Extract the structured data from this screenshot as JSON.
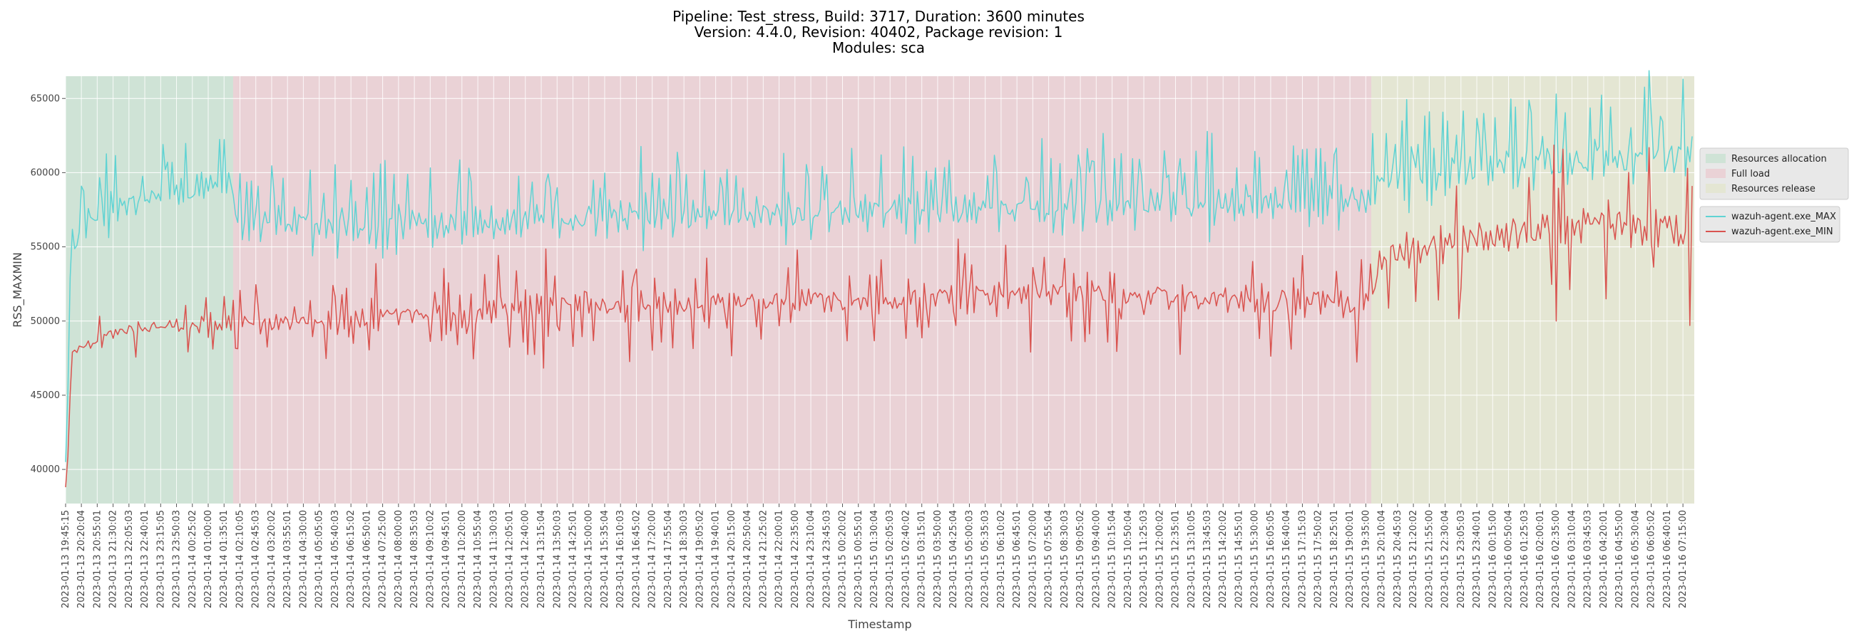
{
  "chart_data": {
    "type": "line",
    "title_lines": [
      "Pipeline: Test_stress, Build: 3717, Duration: 3600 minutes",
      "Version: 4.4.0, Revision: 40402, Package revision: 1",
      "Modules: sca"
    ],
    "xlabel": "Timestamp",
    "ylabel": "RSS_MAXMIN",
    "ylim": [
      37700,
      66500
    ],
    "y_ticks": [
      40000,
      45000,
      50000,
      55000,
      60000,
      65000
    ],
    "x_range": [
      "2023-01-13 19:45:15",
      "2023-01-16 07:40:00"
    ],
    "grid": true,
    "x_tick_labels": [
      "2023-01-13 19:45:15",
      "2023-01-13 20:20:04",
      "2023-01-13 20:55:01",
      "2023-01-13 21:30:02",
      "2023-01-13 22:05:03",
      "2023-01-13 22:40:01",
      "2023-01-13 23:15:05",
      "2023-01-13 23:50:03",
      "2023-01-14 00:25:02",
      "2023-01-14 01:00:00",
      "2023-01-14 01:35:01",
      "2023-01-14 02:10:05",
      "2023-01-14 02:45:03",
      "2023-01-14 03:20:02",
      "2023-01-14 03:55:01",
      "2023-01-14 04:30:00",
      "2023-01-14 05:05:05",
      "2023-01-14 05:40:03",
      "2023-01-14 06:15:02",
      "2023-01-14 06:50:01",
      "2023-01-14 07:25:00",
      "2023-01-14 08:00:00",
      "2023-01-14 08:35:03",
      "2023-01-14 09:10:02",
      "2023-01-14 09:45:01",
      "2023-01-14 10:20:00",
      "2023-01-14 10:55:04",
      "2023-01-14 11:30:03",
      "2023-01-14 12:05:01",
      "2023-01-14 12:40:00",
      "2023-01-14 13:15:04",
      "2023-01-14 13:50:03",
      "2023-01-14 14:25:01",
      "2023-01-14 15:00:00",
      "2023-01-14 15:35:04",
      "2023-01-14 16:10:03",
      "2023-01-14 16:45:02",
      "2023-01-14 17:20:00",
      "2023-01-14 17:55:04",
      "2023-01-14 18:30:03",
      "2023-01-14 19:05:02",
      "2023-01-14 19:40:01",
      "2023-01-14 20:15:00",
      "2023-01-14 20:50:04",
      "2023-01-14 21:25:02",
      "2023-01-14 22:00:01",
      "2023-01-14 22:35:00",
      "2023-01-14 23:10:04",
      "2023-01-14 23:45:03",
      "2023-01-15 00:20:02",
      "2023-01-15 00:55:01",
      "2023-01-15 01:30:04",
      "2023-01-15 02:05:03",
      "2023-01-15 02:40:02",
      "2023-01-15 03:15:01",
      "2023-01-15 03:50:00",
      "2023-01-15 04:25:04",
      "2023-01-15 05:00:03",
      "2023-01-15 05:35:03",
      "2023-01-15 06:10:02",
      "2023-01-15 06:45:01",
      "2023-01-15 07:20:00",
      "2023-01-15 07:55:04",
      "2023-01-15 08:30:03",
      "2023-01-15 09:05:02",
      "2023-01-15 09:40:00",
      "2023-01-15 10:15:04",
      "2023-01-15 10:50:04",
      "2023-01-15 11:25:03",
      "2023-01-15 12:00:02",
      "2023-01-15 12:35:01",
      "2023-01-15 13:10:05",
      "2023-01-15 13:45:03",
      "2023-01-15 14:20:02",
      "2023-01-15 14:55:01",
      "2023-01-15 15:30:00",
      "2023-01-15 16:05:05",
      "2023-01-15 16:40:04",
      "2023-01-15 17:15:03",
      "2023-01-15 17:50:02",
      "2023-01-15 18:25:01",
      "2023-01-15 19:00:01",
      "2023-01-15 19:35:00",
      "2023-01-15 20:10:04",
      "2023-01-15 20:45:03",
      "2023-01-15 21:20:02",
      "2023-01-15 21:55:00",
      "2023-01-15 22:30:04",
      "2023-01-15 23:05:03",
      "2023-01-15 23:40:01",
      "2023-01-16 00:15:00",
      "2023-01-16 00:50:04",
      "2023-01-16 01:25:03",
      "2023-01-16 02:00:01",
      "2023-01-16 02:35:00",
      "2023-01-16 03:10:04",
      "2023-01-16 03:45:03",
      "2023-01-16 04:20:01",
      "2023-01-16 04:55:00",
      "2023-01-16 05:30:04",
      "2023-01-16 06:05:02",
      "2023-01-16 06:40:01",
      "2023-01-16 07:15:00"
    ],
    "phases": [
      {
        "name": "Resources allocation",
        "start": "2023-01-13 19:45:15",
        "end": "2023-01-14 01:55:00",
        "color": "#cfe3d6"
      },
      {
        "name": "Full load",
        "start": "2023-01-14 01:55:00",
        "end": "2023-01-15 19:47:00",
        "color": "#ead2d6"
      },
      {
        "name": "Resources release",
        "start": "2023-01-15 19:47:00",
        "end": "2023-01-16 07:40:00",
        "color": "#e4e6d3"
      }
    ],
    "series": [
      {
        "name": "wazuh-agent.exe_MAX",
        "color": "#5fd3d3",
        "anchors": [
          [
            "2023-01-13 19:45:15",
            40500
          ],
          [
            "2023-01-13 19:48:00",
            44500
          ],
          [
            "2023-01-13 19:52:00",
            45800
          ],
          [
            "2023-01-13 19:56:00",
            54600
          ],
          [
            "2023-01-13 20:25:00",
            56400
          ],
          [
            "2023-01-13 21:30:00",
            57500
          ],
          [
            "2023-01-13 22:30:00",
            58000
          ],
          [
            "2023-01-13 23:30:00",
            58500
          ],
          [
            "2023-01-14 00:30:00",
            59000
          ],
          [
            "2023-01-14 01:50:00",
            59500
          ],
          [
            "2023-01-14 02:05:00",
            57000
          ],
          [
            "2023-01-14 03:00:00",
            56800
          ],
          [
            "2023-01-14 06:00:00",
            56300
          ],
          [
            "2023-01-14 10:00:00",
            56700
          ],
          [
            "2023-01-14 16:00:00",
            57000
          ],
          [
            "2023-01-14 22:00:00",
            57200
          ],
          [
            "2023-01-15 04:00:00",
            57500
          ],
          [
            "2023-01-15 10:00:00",
            57800
          ],
          [
            "2023-01-15 16:00:00",
            58000
          ],
          [
            "2023-01-15 19:45:00",
            58300
          ],
          [
            "2023-01-15 20:10:00",
            59600
          ],
          [
            "2023-01-15 23:00:00",
            60300
          ],
          [
            "2023-01-16 02:00:00",
            60600
          ],
          [
            "2023-01-16 05:00:00",
            61000
          ],
          [
            "2023-01-16 07:40:00",
            61200
          ]
        ],
        "amplitude_anchors": [
          [
            "2023-01-13 19:45:15",
            1000
          ],
          [
            "2023-01-13 20:30:00",
            1700
          ],
          [
            "2023-01-14 01:50:00",
            1900
          ],
          [
            "2023-01-14 02:05:00",
            2000
          ],
          [
            "2023-01-15 19:45:00",
            2200
          ],
          [
            "2023-01-15 20:10:00",
            2300
          ],
          [
            "2023-01-16 07:40:00",
            2500
          ]
        ]
      },
      {
        "name": "wazuh-agent.exe_MIN",
        "color": "#d9534f",
        "anchors": [
          [
            "2023-01-13 19:45:15",
            38800
          ],
          [
            "2023-01-13 19:49:00",
            40600
          ],
          [
            "2023-01-13 19:53:00",
            41500
          ],
          [
            "2023-01-13 19:57:00",
            47900
          ],
          [
            "2023-01-13 20:30:00",
            48400
          ],
          [
            "2023-01-13 21:30:00",
            49200
          ],
          [
            "2023-01-13 23:00:00",
            49600
          ],
          [
            "2023-01-14 01:50:00",
            49900
          ],
          [
            "2023-01-14 04:00:00",
            49900
          ],
          [
            "2023-01-14 08:00:00",
            50300
          ],
          [
            "2023-01-14 14:00:00",
            51000
          ],
          [
            "2023-01-14 20:00:00",
            51200
          ],
          [
            "2023-01-15 02:00:00",
            51500
          ],
          [
            "2023-01-15 08:00:00",
            51800
          ],
          [
            "2023-01-15 14:00:00",
            51600
          ],
          [
            "2023-01-15 19:45:00",
            51200
          ],
          [
            "2023-01-15 20:05:00",
            54500
          ],
          [
            "2023-01-15 23:00:00",
            55400
          ],
          [
            "2023-01-16 02:00:00",
            56200
          ],
          [
            "2023-01-16 05:00:00",
            56500
          ],
          [
            "2023-01-16 07:40:00",
            56000
          ]
        ],
        "amplitude_anchors": [
          [
            "2023-01-13 19:45:15",
            300
          ],
          [
            "2023-01-13 20:30:00",
            700
          ],
          [
            "2023-01-14 02:00:00",
            1200
          ],
          [
            "2023-01-14 12:00:00",
            1600
          ],
          [
            "2023-01-15 19:45:00",
            1800
          ],
          [
            "2023-01-15 20:10:00",
            2200
          ],
          [
            "2023-01-16 07:40:00",
            2500
          ]
        ]
      }
    ],
    "legend_placement": "right",
    "sample_period_minutes": 5
  }
}
